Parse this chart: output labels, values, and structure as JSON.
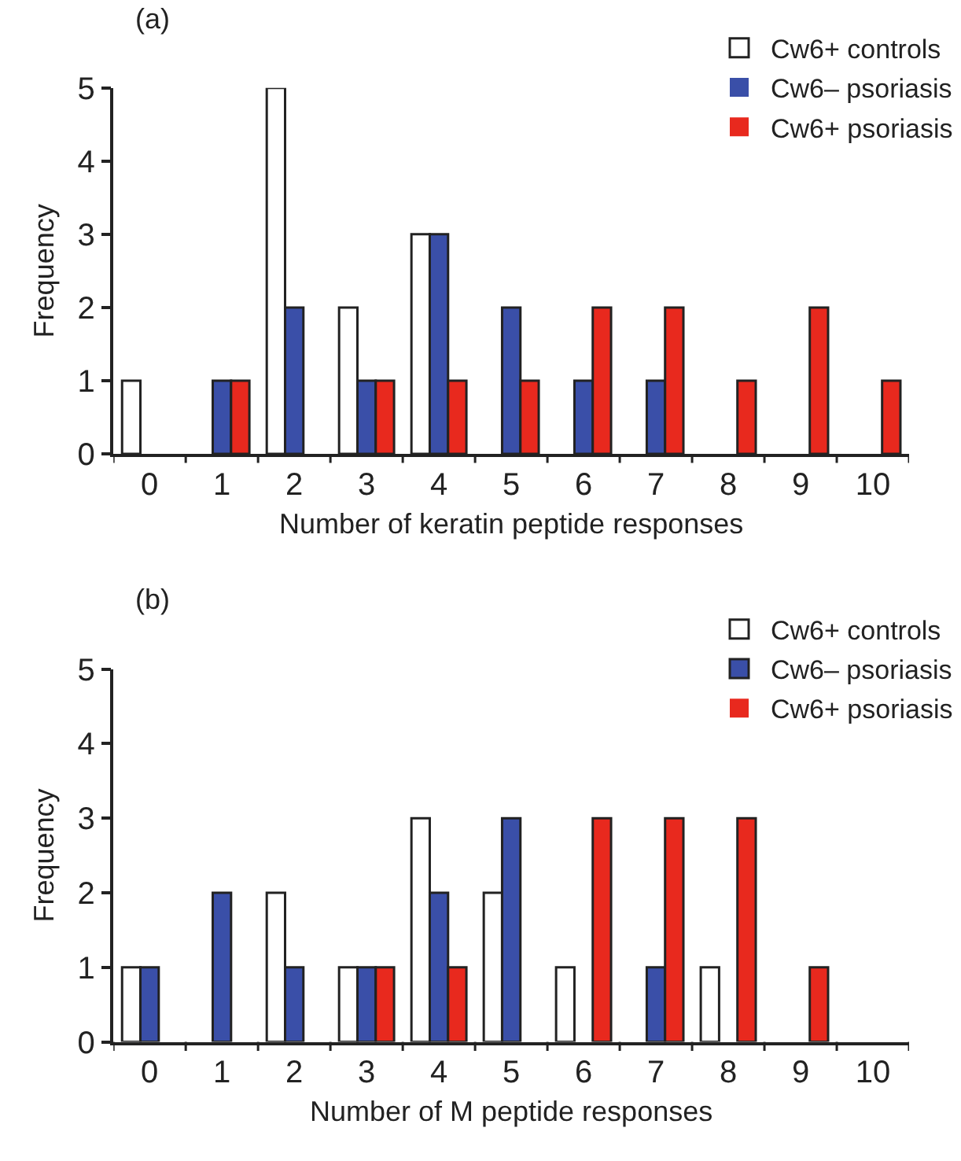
{
  "chart_data": [
    {
      "type": "bar",
      "title": "(a)",
      "xlabel": "Number of keratin peptide responses",
      "ylabel": "Frequency",
      "categories": [
        "0",
        "1",
        "2",
        "3",
        "4",
        "5",
        "6",
        "7",
        "8",
        "9",
        "10"
      ],
      "series": [
        {
          "name": "Cw6+ controls",
          "color": "#ffffff",
          "values": [
            1,
            0,
            5,
            2,
            3,
            0,
            0,
            0,
            0,
            0,
            0
          ]
        },
        {
          "name": "Cw6– psoriasis",
          "color": "#3a4fa8",
          "values": [
            0,
            1,
            2,
            1,
            3,
            2,
            1,
            1,
            0,
            0,
            0
          ]
        },
        {
          "name": "Cw6+ psoriasis",
          "color": "#e8291e",
          "values": [
            0,
            1,
            0,
            1,
            1,
            1,
            2,
            2,
            1,
            2,
            1
          ]
        }
      ],
      "ylim": [
        0,
        5
      ],
      "yticks": [
        0,
        1,
        2,
        3,
        4,
        5
      ],
      "legend": "top right"
    },
    {
      "type": "bar",
      "title": "(b)",
      "xlabel": "Number of M peptide responses",
      "ylabel": "Frequency",
      "categories": [
        "0",
        "1",
        "2",
        "3",
        "4",
        "5",
        "6",
        "7",
        "8",
        "9",
        "10"
      ],
      "series": [
        {
          "name": "Cw6+ controls",
          "color": "#ffffff",
          "values": [
            1,
            0,
            2,
            1,
            3,
            2,
            1,
            0,
            1,
            0,
            0
          ]
        },
        {
          "name": "Cw6– psoriasis",
          "color": "#3a4fa8",
          "values": [
            1,
            2,
            1,
            1,
            2,
            3,
            0,
            1,
            0,
            0,
            0
          ]
        },
        {
          "name": "Cw6+ psoriasis",
          "color": "#e8291e",
          "values": [
            0,
            0,
            0,
            1,
            1,
            0,
            3,
            3,
            3,
            1,
            0
          ]
        }
      ],
      "ylim": [
        0,
        5
      ],
      "yticks": [
        0,
        1,
        2,
        3,
        4,
        5
      ],
      "legend": "top right"
    }
  ]
}
